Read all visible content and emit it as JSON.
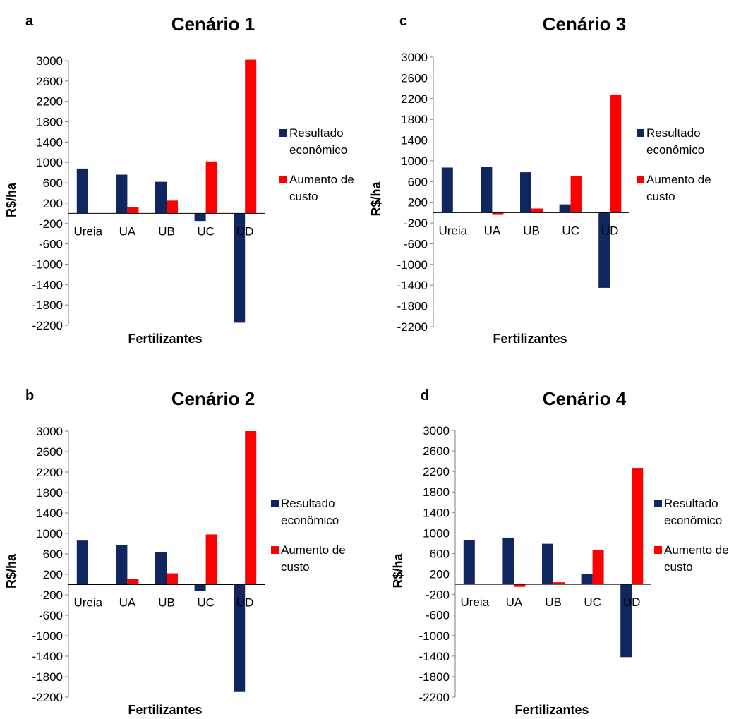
{
  "chart_data": [
    {
      "panel": "a",
      "title": "Cenário 1",
      "type": "bar",
      "ylabel": "R$/ha",
      "xlabel": "Fertilizantes",
      "categories": [
        "Ureia",
        "UA",
        "UB",
        "UC",
        "UD"
      ],
      "y_ticks": [
        3000,
        2600,
        2200,
        1800,
        1400,
        1000,
        600,
        200,
        -200,
        -600,
        -1000,
        -1400,
        -1800,
        -2200
      ],
      "ylim": [
        -2200,
        3000
      ],
      "legend_position": "right",
      "series": [
        {
          "name": "Resultado econômico",
          "color": "#10265e",
          "values": [
            880,
            760,
            620,
            -150,
            -2150
          ]
        },
        {
          "name": "Aumento de custo",
          "color": "#ff0000",
          "values": [
            0,
            120,
            250,
            1020,
            3020
          ]
        }
      ]
    },
    {
      "panel": "b",
      "title": "Cenário 2",
      "type": "bar",
      "ylabel": "R$/ha",
      "xlabel": "Fertilizantes",
      "categories": [
        "Ureia",
        "UA",
        "UB",
        "UC",
        "UD"
      ],
      "y_ticks": [
        3000,
        2600,
        2200,
        1800,
        1400,
        1000,
        600,
        200,
        -200,
        -600,
        -1000,
        -1400,
        -1800,
        -2200
      ],
      "ylim": [
        -2200,
        3000
      ],
      "legend_position": "right",
      "series": [
        {
          "name": "Resultado econômico",
          "color": "#10265e",
          "values": [
            860,
            770,
            640,
            -130,
            -2100
          ]
        },
        {
          "name": "Aumento de custo",
          "color": "#ff0000",
          "values": [
            0,
            110,
            220,
            980,
            3000
          ]
        }
      ]
    },
    {
      "panel": "c",
      "title": "Cenário 3",
      "type": "bar",
      "ylabel": "R$/ha",
      "xlabel": "Fertilizantes",
      "categories": [
        "Ureia",
        "UA",
        "UB",
        "UC",
        "UD"
      ],
      "y_ticks": [
        3000,
        2600,
        2200,
        1800,
        1400,
        1000,
        600,
        200,
        -200,
        -600,
        -1000,
        -1400,
        -1800,
        -2200
      ],
      "ylim": [
        -2200,
        3000
      ],
      "legend_position": "right",
      "series": [
        {
          "name": "Resultado econômico",
          "color": "#10265e",
          "values": [
            870,
            890,
            780,
            160,
            -1450
          ]
        },
        {
          "name": "Aumento de custo",
          "color": "#ff0000",
          "values": [
            0,
            -30,
            80,
            700,
            2280
          ]
        }
      ]
    },
    {
      "panel": "d",
      "title": "Cenário 4",
      "type": "bar",
      "ylabel": "R$/ha",
      "xlabel": "Fertilizantes",
      "categories": [
        "Ureia",
        "UA",
        "UB",
        "UC",
        "UD"
      ],
      "y_ticks": [
        3000,
        2600,
        2200,
        1800,
        1400,
        1000,
        600,
        200,
        -200,
        -600,
        -1000,
        -1400,
        -1800,
        -2200
      ],
      "ylim": [
        -2200,
        3000
      ],
      "legend_position": "right",
      "series": [
        {
          "name": "Resultado econômico",
          "color": "#10265e",
          "values": [
            860,
            910,
            790,
            200,
            -1420
          ]
        },
        {
          "name": "Aumento de custo",
          "color": "#ff0000",
          "values": [
            0,
            -50,
            40,
            670,
            2270
          ]
        }
      ]
    }
  ]
}
